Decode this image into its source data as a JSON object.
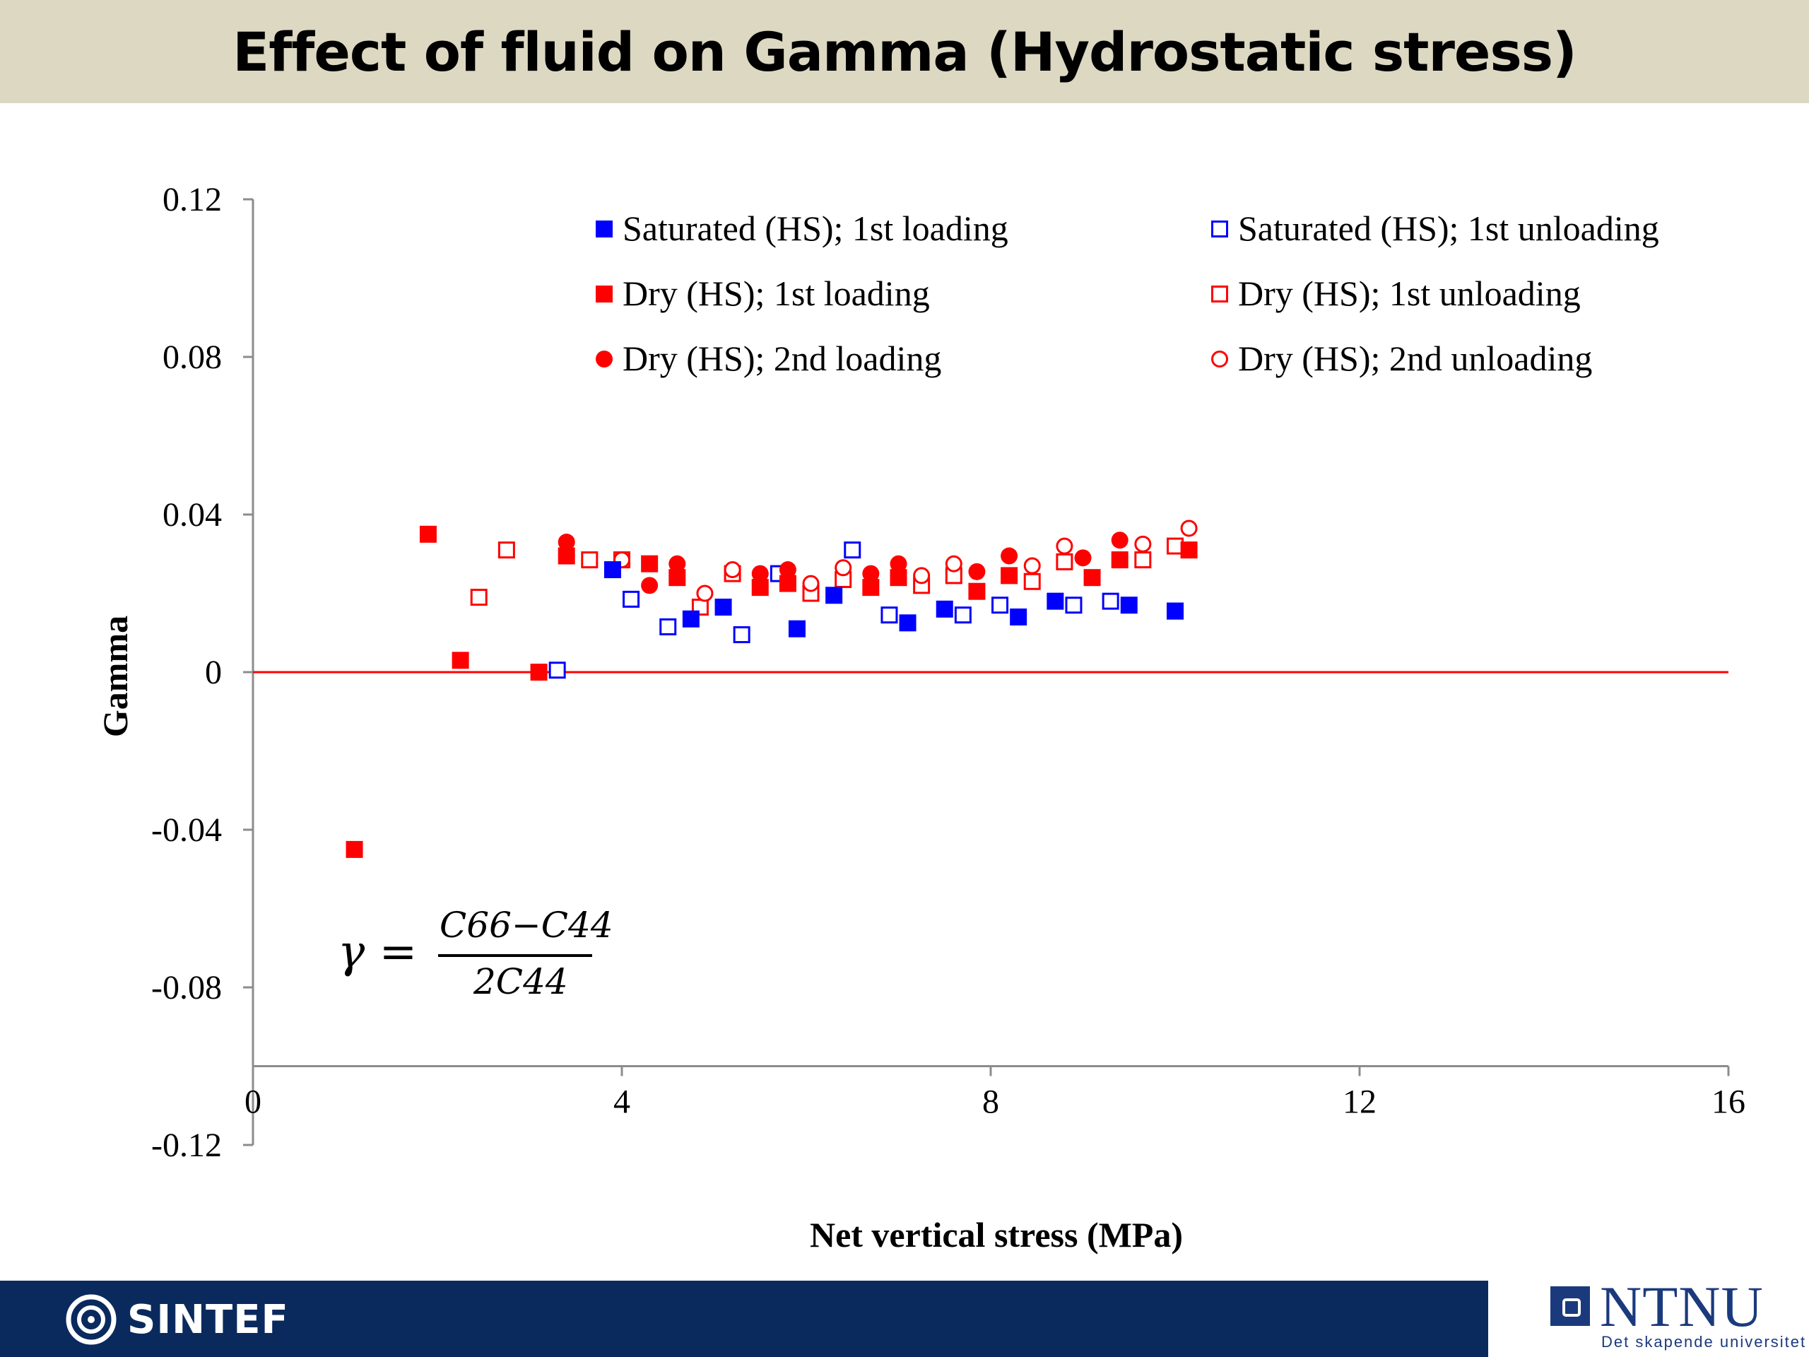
{
  "page": {
    "title": "Effect of fluid on Gamma (Hydrostatic stress)"
  },
  "formula": {
    "lhs": "γ =",
    "numerator": "C66−C44",
    "denominator": "2C44"
  },
  "footer": {
    "left_logo_text": "SINTEF",
    "right_logo_text": "NTNU",
    "right_logo_tagline": "Det skapende universitet"
  },
  "colors": {
    "blue": "#0000ff",
    "red": "#ff0000",
    "axis": "#8c8c8c",
    "zero_line": "#ff0000",
    "footer_bg": "#0a2a5e",
    "title_bg": "#dcd8c2"
  },
  "chart_data": {
    "type": "scatter",
    "title": "",
    "xlabel": "Net vertical stress (MPa)",
    "ylabel": "Gamma",
    "xlim": [
      0,
      16
    ],
    "ylim": [
      -0.12,
      0.12
    ],
    "x_ticks": [
      "0",
      "4",
      "8",
      "12",
      "16"
    ],
    "y_ticks": [
      "0.12",
      "0.08",
      "0.04",
      "0",
      "-0.04",
      "-0.08",
      "-0.12"
    ],
    "grid": false,
    "reference_line": {
      "y": 0,
      "color": "#ff0000"
    },
    "legend_position": "top-center, two columns",
    "series": [
      {
        "name": "Saturated (HS); 1st loading",
        "marker": "square-filled",
        "color": "#0000ff",
        "points": [
          [
            3.9,
            0.026
          ],
          [
            4.75,
            0.0135
          ],
          [
            5.1,
            0.0165
          ],
          [
            5.9,
            0.011
          ],
          [
            6.3,
            0.0195
          ],
          [
            7.1,
            0.0125
          ],
          [
            7.5,
            0.016
          ],
          [
            8.3,
            0.014
          ],
          [
            8.7,
            0.018
          ],
          [
            9.5,
            0.017
          ],
          [
            10.0,
            0.0155
          ]
        ]
      },
      {
        "name": "Saturated (HS); 1st unloading",
        "marker": "square-open",
        "color": "#0000ff",
        "points": [
          [
            3.3,
            0.0005
          ],
          [
            4.1,
            0.0185
          ],
          [
            4.5,
            0.0115
          ],
          [
            5.3,
            0.0095
          ],
          [
            5.7,
            0.025
          ],
          [
            6.5,
            0.031
          ],
          [
            6.9,
            0.0145
          ],
          [
            7.7,
            0.0145
          ],
          [
            8.1,
            0.017
          ],
          [
            8.9,
            0.017
          ],
          [
            9.3,
            0.018
          ],
          [
            10.0,
            0.0155
          ]
        ]
      },
      {
        "name": "Dry (HS); 1st loading",
        "marker": "square-filled",
        "color": "#ff0000",
        "points": [
          [
            1.1,
            -0.045
          ],
          [
            1.9,
            0.035
          ],
          [
            2.25,
            0.003
          ],
          [
            3.1,
            0.0
          ],
          [
            3.4,
            0.0295
          ],
          [
            4.3,
            0.0275
          ],
          [
            4.6,
            0.024
          ],
          [
            5.5,
            0.0215
          ],
          [
            5.8,
            0.0225
          ],
          [
            6.7,
            0.0215
          ],
          [
            7.0,
            0.024
          ],
          [
            7.85,
            0.0205
          ],
          [
            8.2,
            0.0245
          ],
          [
            9.1,
            0.024
          ],
          [
            9.4,
            0.0285
          ],
          [
            10.15,
            0.031
          ]
        ]
      },
      {
        "name": "Dry (HS); 1st unloading",
        "marker": "square-open",
        "color": "#ff0000",
        "points": [
          [
            2.45,
            0.019
          ],
          [
            2.75,
            0.031
          ],
          [
            3.65,
            0.0285
          ],
          [
            4.0,
            0.0285
          ],
          [
            4.85,
            0.0165
          ],
          [
            5.2,
            0.025
          ],
          [
            6.05,
            0.02
          ],
          [
            6.4,
            0.0235
          ],
          [
            7.25,
            0.022
          ],
          [
            7.6,
            0.0245
          ],
          [
            8.45,
            0.023
          ],
          [
            8.8,
            0.028
          ],
          [
            9.65,
            0.0285
          ],
          [
            10.0,
            0.032
          ]
        ]
      },
      {
        "name": "Dry (HS); 2nd loading",
        "marker": "circle-filled",
        "color": "#ff0000",
        "points": [
          [
            3.4,
            0.033
          ],
          [
            4.3,
            0.022
          ],
          [
            4.6,
            0.0275
          ],
          [
            5.5,
            0.025
          ],
          [
            5.8,
            0.026
          ],
          [
            6.7,
            0.025
          ],
          [
            7.0,
            0.0275
          ],
          [
            7.85,
            0.0255
          ],
          [
            8.2,
            0.0295
          ],
          [
            9.0,
            0.029
          ],
          [
            9.4,
            0.0335
          ]
        ]
      },
      {
        "name": "Dry (HS); 2nd unloading",
        "marker": "circle-open",
        "color": "#ff0000",
        "points": [
          [
            4.0,
            0.0285
          ],
          [
            4.9,
            0.02
          ],
          [
            5.2,
            0.026
          ],
          [
            6.05,
            0.0225
          ],
          [
            6.4,
            0.0265
          ],
          [
            7.25,
            0.0245
          ],
          [
            7.6,
            0.0275
          ],
          [
            8.45,
            0.027
          ],
          [
            8.8,
            0.032
          ],
          [
            9.65,
            0.0325
          ],
          [
            10.15,
            0.0365
          ]
        ]
      }
    ]
  }
}
